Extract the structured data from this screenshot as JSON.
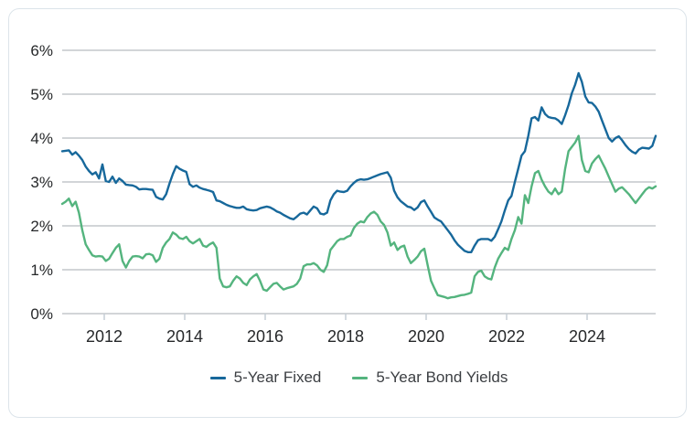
{
  "chart_data": {
    "type": "line",
    "title": "",
    "xlabel": "",
    "ylabel": "",
    "y_tick_labels": [
      "0%",
      "1%",
      "2%",
      "3%",
      "4%",
      "5%",
      "6%"
    ],
    "ylim": [
      0,
      6
    ],
    "x_tick_years": [
      2012,
      2014,
      2016,
      2018,
      2020,
      2022,
      2024
    ],
    "x_tick_labels": [
      "2012",
      "2014",
      "2016",
      "2018",
      "2020",
      "2022",
      "2024"
    ],
    "x_start_year": 2011,
    "sampling": "monthly",
    "grid": true,
    "legend_position": "bottom",
    "series": [
      {
        "name": "5-Year Fixed",
        "color": "#17689B",
        "values": [
          3.7,
          3.71,
          3.72,
          3.62,
          3.68,
          3.6,
          3.5,
          3.35,
          3.25,
          3.17,
          3.22,
          3.08,
          3.4,
          3.02,
          3.0,
          3.12,
          2.98,
          3.08,
          3.02,
          2.94,
          2.93,
          2.92,
          2.89,
          2.83,
          2.84,
          2.84,
          2.83,
          2.82,
          2.66,
          2.62,
          2.6,
          2.72,
          2.96,
          3.18,
          3.36,
          3.3,
          3.26,
          3.23,
          2.95,
          2.89,
          2.92,
          2.87,
          2.84,
          2.82,
          2.8,
          2.77,
          2.58,
          2.56,
          2.52,
          2.48,
          2.45,
          2.43,
          2.41,
          2.41,
          2.44,
          2.38,
          2.36,
          2.35,
          2.36,
          2.4,
          2.42,
          2.44,
          2.42,
          2.38,
          2.33,
          2.3,
          2.25,
          2.21,
          2.17,
          2.15,
          2.21,
          2.28,
          2.3,
          2.26,
          2.35,
          2.44,
          2.4,
          2.28,
          2.26,
          2.3,
          2.58,
          2.72,
          2.8,
          2.78,
          2.77,
          2.8,
          2.9,
          2.98,
          3.04,
          3.06,
          3.05,
          3.06,
          3.09,
          3.12,
          3.15,
          3.18,
          3.2,
          3.22,
          3.1,
          2.8,
          2.65,
          2.56,
          2.5,
          2.44,
          2.42,
          2.36,
          2.42,
          2.54,
          2.58,
          2.44,
          2.32,
          2.19,
          2.14,
          2.1,
          2.0,
          1.9,
          1.8,
          1.67,
          1.57,
          1.5,
          1.43,
          1.4,
          1.4,
          1.55,
          1.67,
          1.7,
          1.7,
          1.7,
          1.66,
          1.75,
          1.92,
          2.1,
          2.35,
          2.58,
          2.68,
          3.0,
          3.3,
          3.6,
          3.7,
          4.05,
          4.45,
          4.48,
          4.4,
          4.7,
          4.55,
          4.48,
          4.46,
          4.45,
          4.4,
          4.32,
          4.52,
          4.75,
          5.02,
          5.22,
          5.48,
          5.28,
          4.95,
          4.81,
          4.8,
          4.72,
          4.6,
          4.4,
          4.2,
          4.0,
          3.92,
          4.0,
          4.04,
          3.95,
          3.84,
          3.75,
          3.69,
          3.65,
          3.74,
          3.78,
          3.77,
          3.76,
          3.82,
          4.05
        ]
      },
      {
        "name": "5-Year Bond Yields",
        "color": "#54B47E",
        "values": [
          2.5,
          2.55,
          2.62,
          2.45,
          2.55,
          2.3,
          1.9,
          1.58,
          1.45,
          1.33,
          1.3,
          1.31,
          1.3,
          1.2,
          1.25,
          1.38,
          1.5,
          1.58,
          1.2,
          1.05,
          1.2,
          1.3,
          1.31,
          1.3,
          1.26,
          1.35,
          1.36,
          1.33,
          1.18,
          1.25,
          1.5,
          1.62,
          1.7,
          1.85,
          1.8,
          1.72,
          1.7,
          1.75,
          1.65,
          1.6,
          1.65,
          1.7,
          1.55,
          1.52,
          1.58,
          1.62,
          1.5,
          0.8,
          0.62,
          0.6,
          0.62,
          0.75,
          0.85,
          0.8,
          0.7,
          0.65,
          0.78,
          0.85,
          0.9,
          0.75,
          0.55,
          0.52,
          0.6,
          0.68,
          0.7,
          0.62,
          0.55,
          0.58,
          0.6,
          0.62,
          0.68,
          0.8,
          1.08,
          1.12,
          1.12,
          1.15,
          1.1,
          1.0,
          0.95,
          1.1,
          1.45,
          1.55,
          1.65,
          1.7,
          1.7,
          1.75,
          1.78,
          1.95,
          2.05,
          2.1,
          2.08,
          2.2,
          2.28,
          2.32,
          2.25,
          2.1,
          2.02,
          1.85,
          1.55,
          1.62,
          1.45,
          1.52,
          1.55,
          1.3,
          1.15,
          1.22,
          1.3,
          1.42,
          1.48,
          1.1,
          0.75,
          0.58,
          0.42,
          0.4,
          0.38,
          0.35,
          0.37,
          0.38,
          0.4,
          0.42,
          0.43,
          0.45,
          0.48,
          0.85,
          0.95,
          0.98,
          0.85,
          0.8,
          0.78,
          1.05,
          1.25,
          1.38,
          1.5,
          1.45,
          1.7,
          1.9,
          2.2,
          2.05,
          2.7,
          2.52,
          2.9,
          3.2,
          3.25,
          3.05,
          2.9,
          2.78,
          2.72,
          2.85,
          2.72,
          2.78,
          3.3,
          3.7,
          3.8,
          3.9,
          4.05,
          3.5,
          3.25,
          3.22,
          3.42,
          3.52,
          3.6,
          3.45,
          3.3,
          3.12,
          2.95,
          2.78,
          2.85,
          2.88,
          2.8,
          2.72,
          2.62,
          2.52,
          2.62,
          2.72,
          2.82,
          2.88,
          2.85,
          2.9
        ]
      }
    ]
  },
  "legend": {
    "items": [
      {
        "label": "5-Year Fixed",
        "color": "#17689B"
      },
      {
        "label": "5-Year Bond Yields",
        "color": "#54B47E"
      }
    ]
  },
  "style": {
    "grid_color": "#a5abb0",
    "tick_color": "#c5ced6",
    "axis_label_color": "#26282a",
    "legend_text_color": "#3b3e42",
    "card_border_color": "#dce4ea",
    "background": "#ffffff"
  }
}
